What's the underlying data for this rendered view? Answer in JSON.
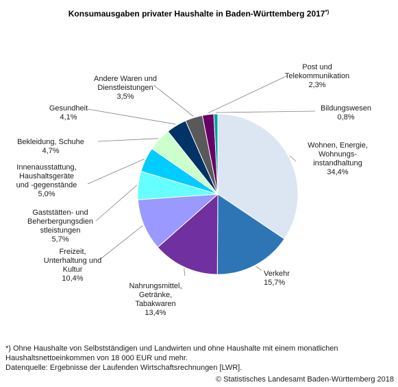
{
  "chart_data": {
    "type": "pie",
    "title": "Konsumausgaben privater Haushalte in Baden-Württemberg 2017",
    "title_marker": "*)",
    "slices": [
      {
        "label_lines": [
          "Wohnen, Energie,",
          "Wohnungs-",
          "instandhaltung"
        ],
        "value": 34.4,
        "value_label": "34,4%",
        "color": "#dce6f2"
      },
      {
        "label_lines": [
          "Verkehr"
        ],
        "value": 15.7,
        "value_label": "15,7%",
        "color": "#2e75b6"
      },
      {
        "label_lines": [
          "Nahrungsmittel,",
          "Getränke,",
          "Tabakwaren"
        ],
        "value": 13.4,
        "value_label": "13,4%",
        "color": "#7030a0"
      },
      {
        "label_lines": [
          "Freizeit,",
          "Unterhaltung und",
          "Kultur"
        ],
        "value": 10.4,
        "value_label": "10,4%",
        "color": "#9999ff"
      },
      {
        "label_lines": [
          "Gaststätten- und",
          "Beherbergungsdien",
          "stleistungen"
        ],
        "value": 5.7,
        "value_label": "5,7%",
        "color": "#66ffff"
      },
      {
        "label_lines": [
          "Innenausstattung,",
          "Haushaltsgeräte",
          "und -gegenstände"
        ],
        "value": 5.0,
        "value_label": "5,0%",
        "color": "#00ccff"
      },
      {
        "label_lines": [
          "Bekleidung, Schuhe"
        ],
        "value": 4.7,
        "value_label": "4,7%",
        "color": "#ccffcc"
      },
      {
        "label_lines": [
          "Gesundheit"
        ],
        "value": 4.1,
        "value_label": "4,1%",
        "color": "#003366"
      },
      {
        "label_lines": [
          "Andere Waren und",
          "Dienstleistungen"
        ],
        "value": 3.5,
        "value_label": "3,5%",
        "color": "#595959"
      },
      {
        "label_lines": [
          "Post und",
          "Telekommunikation"
        ],
        "value": 2.3,
        "value_label": "2,3%",
        "color": "#660066"
      },
      {
        "label_lines": [
          "Bildungswesen"
        ],
        "value": 0.8,
        "value_label": "0,8%",
        "color": "#00a0a0"
      }
    ]
  },
  "footnote_lines": [
    "*) Ohne Haushalte von Selbstständigen und Landwirten und ohne Haushalte mit einem monatlichen",
    "Haushaltsnettoeinkommen von 18 000 EUR und mehr.",
    "Datenquelle: Ergebnisse der Laufenden Wirtschaftsrechnungen [LWR]."
  ],
  "copyright": "© Statistisches Landesamt Baden-Württemberg 2018"
}
